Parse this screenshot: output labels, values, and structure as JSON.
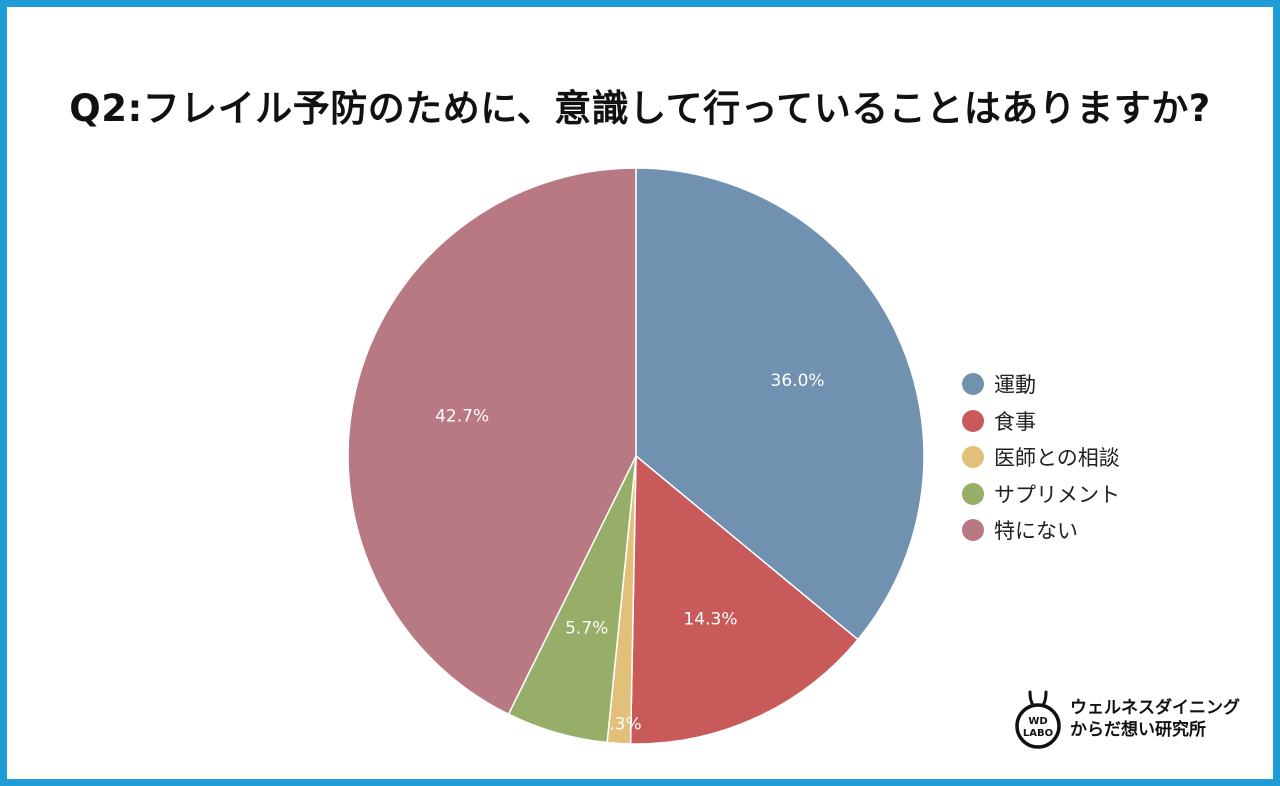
{
  "title": "Q2:フレイル予防のために、意識して行っていることはありますか?",
  "chart_data": {
    "type": "pie",
    "slices": [
      {
        "label": "運動",
        "value": 36.0,
        "display": "36.0%",
        "color": "#7191b1"
      },
      {
        "label": "食事",
        "value": 14.3,
        "display": "14.3%",
        "color": "#c85a5a"
      },
      {
        "label": "医師との相談",
        "value": 1.3,
        "display": "1.3%",
        "color": "#e3c07a"
      },
      {
        "label": "サプリメント",
        "value": 5.7,
        "display": "5.7%",
        "color": "#97ae68"
      },
      {
        "label": "特にない",
        "value": 42.7,
        "display": "42.7%",
        "color": "#b97983"
      }
    ],
    "start": "12 o'clock",
    "direction": "clockwise",
    "legend_position": "right"
  },
  "brand": {
    "logo_text_top": "WD",
    "logo_text_bottom": "LABO",
    "line1": "ウェルネスダイニング",
    "line2": "からだ想い研究所"
  }
}
